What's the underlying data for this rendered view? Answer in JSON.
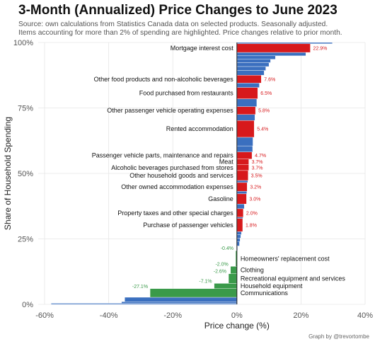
{
  "chart_data": {
    "type": "bar",
    "title": "3-Month (Annualized) Price Changes to June 2023",
    "subtitle_lines": [
      "Source: own calculations from Statistics Canada data on selected products. Seasonally adjusted.",
      "Items accounting for more than 2% of spending are highlighted. Price changes relative to prior month."
    ],
    "xlabel": "Price change (%)",
    "ylabel": "Share of Household Spending",
    "xlim": [
      -62,
      40
    ],
    "ylim": [
      0,
      100
    ],
    "x_ticks": [
      -60,
      -40,
      -20,
      0,
      20,
      40
    ],
    "x_tick_labels": [
      "-60%",
      "-40%",
      "-20%",
      "0%",
      "20%",
      "40%"
    ],
    "y_ticks": [
      0,
      25,
      50,
      75,
      100
    ],
    "y_tick_labels": [
      "0%",
      "25%",
      "50%",
      "75%",
      "100%"
    ],
    "grid": true,
    "caption": "Graph by @trevortombe",
    "colors": {
      "increase_highlight": "#d7191c",
      "decrease_highlight": "#3a9a4a",
      "other": "#3a6fbf",
      "label_increase": "#d7191c",
      "label_decrease": "#3a9a4a"
    },
    "highlighted": [
      {
        "name": "Mortgage interest cost",
        "value": 22.9,
        "value_label": "22.9%",
        "y_bottom": 96.2,
        "y_top": 99.5
      },
      {
        "name": "Other food products and non-alcoholic beverages",
        "value": 7.6,
        "value_label": "7.6%",
        "y_bottom": 84.5,
        "y_top": 87.5
      },
      {
        "name": "Food purchased from restaurants",
        "value": 6.5,
        "value_label": "6.5%",
        "y_bottom": 78.5,
        "y_top": 82.8
      },
      {
        "name": "Other passenger vehicle operating expenses",
        "value": 5.8,
        "value_label": "5.8%",
        "y_bottom": 72.5,
        "y_top": 75.5
      },
      {
        "name": "Rented accommodation",
        "value": 5.4,
        "value_label": "5.4%",
        "y_bottom": 63.8,
        "y_top": 70.2
      },
      {
        "name": "Passenger vehicle parts, maintenance and repairs",
        "value": 4.7,
        "value_label": "4.7%",
        "y_bottom": 55.5,
        "y_top": 58.2
      },
      {
        "name": "Meat",
        "value": 3.7,
        "value_label": "3.7%",
        "y_bottom": 53.3,
        "y_top": 55.5
      },
      {
        "name": "Alcoholic beverages purchased from stores",
        "value": 3.7,
        "value_label": "3.7%",
        "y_bottom": 51.1,
        "y_top": 53.3
      },
      {
        "name": "Other household goods and services",
        "value": 3.5,
        "value_label": "3.5%",
        "y_bottom": 47.3,
        "y_top": 51.1
      },
      {
        "name": "Other owned accommodation expenses",
        "value": 3.2,
        "value_label": "3.2%",
        "y_bottom": 43.2,
        "y_top": 46.5
      },
      {
        "name": "Gasoline",
        "value": 3.0,
        "value_label": "3.0%",
        "y_bottom": 38.3,
        "y_top": 42.2
      },
      {
        "name": "Property taxes and other special charges",
        "value": 2.0,
        "value_label": "2.0%",
        "y_bottom": 33.3,
        "y_top": 36.5
      },
      {
        "name": "Purchase of passenger vehicles",
        "value": 1.8,
        "value_label": "1.8%",
        "y_bottom": 27.8,
        "y_top": 32.8
      },
      {
        "name": "Homeowners' replacement cost",
        "value": -0.4,
        "value_label": "-0.4%",
        "y_bottom": 14.5,
        "y_top": 20.5
      },
      {
        "name": "Clothing",
        "value": -2.0,
        "value_label": "-2.0%",
        "y_bottom": 11.7,
        "y_top": 14.5
      },
      {
        "name": "Recreational equipment and services",
        "value": -2.6,
        "value_label": "-2.6%",
        "y_bottom": 8.0,
        "y_top": 11.7
      },
      {
        "name": "Household equipment",
        "value": -7.1,
        "value_label": "-7.1%",
        "y_bottom": 6.0,
        "y_top": 8.0
      },
      {
        "name": "Communications",
        "value": -27.1,
        "value_label": "-27.1%",
        "y_bottom": 2.7,
        "y_top": 6.0
      }
    ],
    "other_bars": [
      {
        "value": 29.8,
        "y_bottom": 99.5,
        "y_top": 100.0
      },
      {
        "value": 21.5,
        "y_bottom": 94.9,
        "y_top": 96.2
      },
      {
        "value": 12.0,
        "y_bottom": 93.6,
        "y_top": 94.9
      },
      {
        "value": 10.5,
        "y_bottom": 92.3,
        "y_top": 93.6
      },
      {
        "value": 10.0,
        "y_bottom": 90.8,
        "y_top": 92.3
      },
      {
        "value": 9.0,
        "y_bottom": 89.3,
        "y_top": 90.8
      },
      {
        "value": 8.5,
        "y_bottom": 87.5,
        "y_top": 89.3
      },
      {
        "value": 7.0,
        "y_bottom": 82.8,
        "y_top": 84.5
      },
      {
        "value": 6.2,
        "y_bottom": 75.5,
        "y_top": 78.5
      },
      {
        "value": 5.6,
        "y_bottom": 70.2,
        "y_top": 72.5
      },
      {
        "value": 5.0,
        "y_bottom": 60.5,
        "y_top": 63.8
      },
      {
        "value": 4.9,
        "y_bottom": 58.2,
        "y_top": 60.5
      },
      {
        "value": 3.4,
        "y_bottom": 46.5,
        "y_top": 47.3
      },
      {
        "value": 3.1,
        "y_bottom": 42.2,
        "y_top": 43.2
      },
      {
        "value": 2.3,
        "y_bottom": 36.5,
        "y_top": 38.3
      },
      {
        "value": 1.9,
        "y_bottom": 32.8,
        "y_top": 33.3
      },
      {
        "value": 1.4,
        "y_bottom": 26.6,
        "y_top": 27.8
      },
      {
        "value": 1.2,
        "y_bottom": 25.3,
        "y_top": 26.6
      },
      {
        "value": 1.0,
        "y_bottom": 24.0,
        "y_top": 25.3
      },
      {
        "value": 0.8,
        "y_bottom": 22.3,
        "y_top": 24.0
      },
      {
        "value": 0.2,
        "y_bottom": 20.5,
        "y_top": 22.3
      },
      {
        "value": -16.0,
        "y_bottom": 5.0,
        "y_top": 6.0
      },
      {
        "value": -35.0,
        "y_bottom": 1.0,
        "y_top": 2.7
      },
      {
        "value": -36.0,
        "y_bottom": 0.4,
        "y_top": 1.0
      },
      {
        "value": -58.0,
        "y_bottom": 0.0,
        "y_top": 0.4
      }
    ]
  }
}
